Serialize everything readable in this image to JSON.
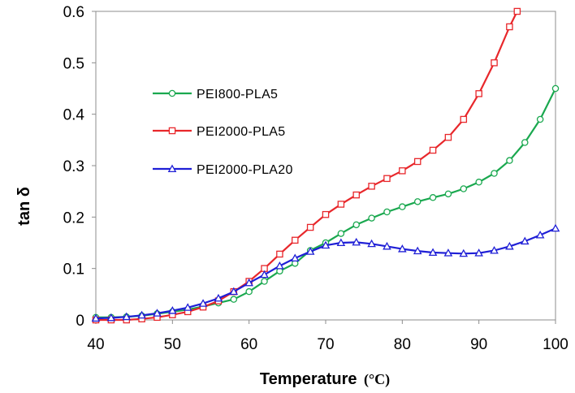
{
  "chart_data": {
    "type": "line",
    "title": "",
    "xlabel": "Temperature",
    "xunit": "(°C)",
    "ylabel": "tan δ",
    "xlim": [
      40,
      100
    ],
    "ylim": [
      0,
      0.6
    ],
    "x_ticks": [
      "40",
      "50",
      "60",
      "70",
      "80",
      "90",
      "100"
    ],
    "y_ticks": [
      "0",
      "0.1",
      "0.2",
      "0.3",
      "0.4",
      "0.5",
      "0.6"
    ],
    "grid": false,
    "legend_position": "center-left",
    "series": [
      {
        "name": "PEI800-PLA5",
        "color": "#1aa84f",
        "marker": "circle",
        "x": [
          40,
          42,
          44,
          46,
          48,
          50,
          52,
          54,
          56,
          58,
          60,
          62,
          64,
          66,
          68,
          70,
          72,
          74,
          76,
          78,
          80,
          82,
          84,
          86,
          88,
          90,
          92,
          94,
          96,
          98,
          100
        ],
        "y": [
          0.005,
          0.005,
          0.006,
          0.008,
          0.012,
          0.016,
          0.02,
          0.026,
          0.033,
          0.04,
          0.055,
          0.075,
          0.095,
          0.11,
          0.135,
          0.15,
          0.168,
          0.185,
          0.198,
          0.21,
          0.22,
          0.23,
          0.238,
          0.245,
          0.255,
          0.268,
          0.285,
          0.31,
          0.345,
          0.39,
          0.45
        ]
      },
      {
        "name": "PEI2000-PLA5",
        "color": "#e8272b",
        "marker": "square",
        "x": [
          40,
          42,
          44,
          46,
          48,
          50,
          52,
          54,
          56,
          58,
          60,
          62,
          64,
          66,
          68,
          70,
          72,
          74,
          76,
          78,
          80,
          82,
          84,
          86,
          88,
          90,
          92,
          94,
          95
        ],
        "y": [
          0.0,
          0.0,
          0.0,
          0.002,
          0.005,
          0.01,
          0.016,
          0.025,
          0.037,
          0.055,
          0.075,
          0.1,
          0.128,
          0.155,
          0.18,
          0.205,
          0.225,
          0.243,
          0.26,
          0.275,
          0.29,
          0.308,
          0.33,
          0.355,
          0.39,
          0.44,
          0.5,
          0.57,
          0.6
        ]
      },
      {
        "name": "PEI2000-PLA20",
        "color": "#1f1fd6",
        "marker": "triangle",
        "x": [
          40,
          42,
          44,
          46,
          48,
          50,
          52,
          54,
          56,
          58,
          60,
          62,
          64,
          66,
          68,
          70,
          72,
          74,
          76,
          78,
          80,
          82,
          84,
          86,
          88,
          90,
          92,
          94,
          96,
          98,
          100
        ],
        "y": [
          0.003,
          0.004,
          0.006,
          0.009,
          0.013,
          0.018,
          0.024,
          0.032,
          0.042,
          0.055,
          0.072,
          0.088,
          0.105,
          0.12,
          0.133,
          0.145,
          0.15,
          0.151,
          0.148,
          0.143,
          0.138,
          0.134,
          0.131,
          0.13,
          0.129,
          0.13,
          0.135,
          0.143,
          0.153,
          0.165,
          0.178
        ]
      }
    ]
  }
}
